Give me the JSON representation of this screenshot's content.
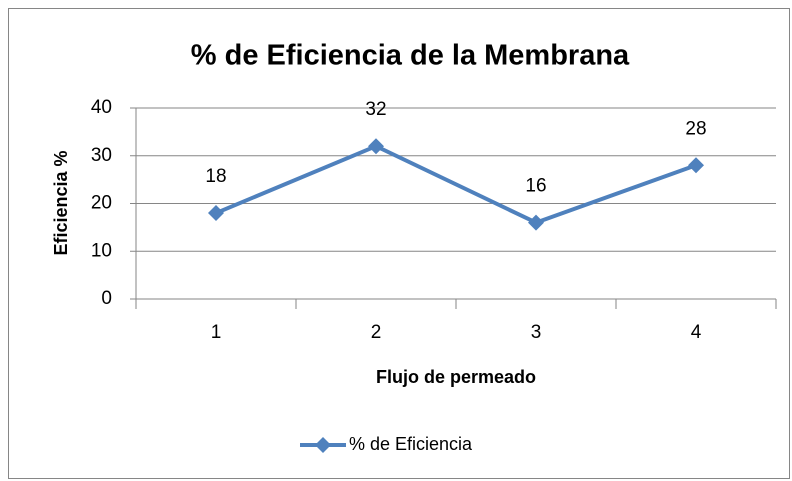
{
  "chart_data": {
    "type": "line",
    "title": "% de Eficiencia de la Membrana",
    "x_label": "Flujo de permeado",
    "y_label": "Eficiencia %",
    "categories": [
      "1",
      "2",
      "3",
      "4"
    ],
    "series": [
      {
        "name": "% de Eficiencia",
        "color": "#4f81bd",
        "values": [
          18,
          32,
          16,
          28
        ]
      }
    ],
    "ylim": [
      0,
      40
    ],
    "yticks": [
      0,
      10,
      20,
      30,
      40
    ],
    "grid": true,
    "data_labels": true,
    "legend": "bottom"
  }
}
